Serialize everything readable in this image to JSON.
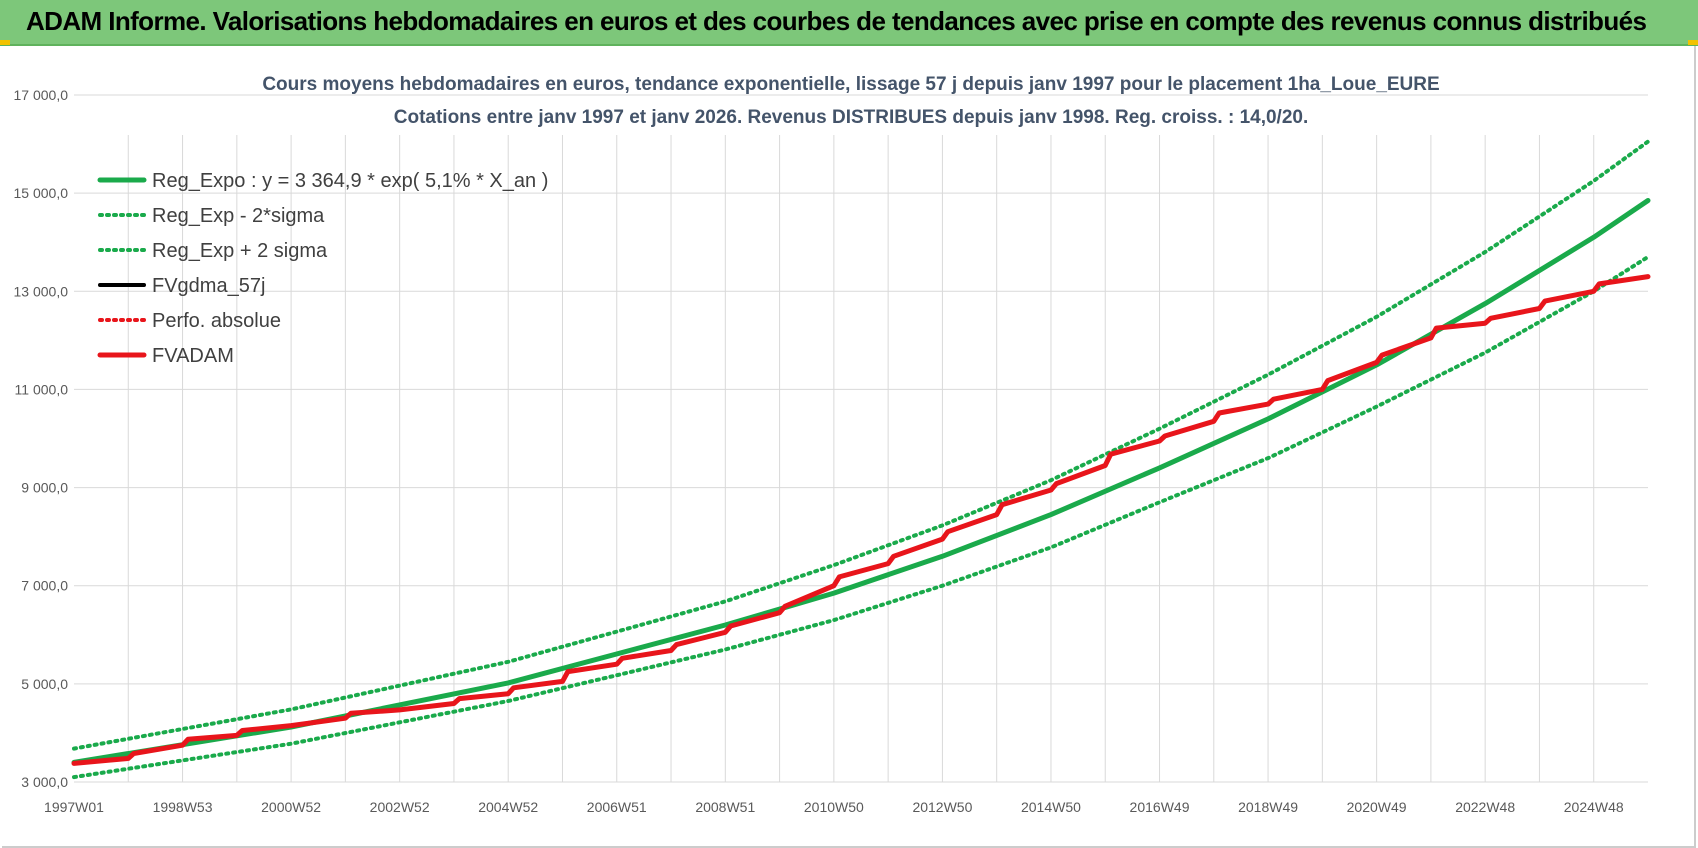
{
  "header": {
    "title": "ADAM Informe. Valorisations hebdomadaires en euros et des courbes de tendances avec prise en compte des revenus connus distribués"
  },
  "colors": {
    "header_bg": "#7dc77a",
    "reg_expo": "#1aaa4b",
    "fvadam": "#e8151b",
    "fvgdma": "#000000",
    "grid": "#d9d9d9"
  },
  "chart_data": {
    "type": "line",
    "title": "Cours moyens  hebdomadaires en euros, tendance exponentielle, lissage 57 j depuis janv 1997 pour le placement 1ha_Loue_EURE",
    "subtitle": "Cotations entre janv 1997 et janv 2026. Revenus DISTRIBUES depuis janv 1998.  Reg. croiss. : 14,0/20.",
    "xlabel": "",
    "ylabel": "",
    "ylim": [
      3000,
      17000
    ],
    "xlim": [
      1997.0,
      2026.0
    ],
    "grid": true,
    "legend_position": "top-left",
    "y_ticks": [
      {
        "value": 3000,
        "label": "3 000,0"
      },
      {
        "value": 5000,
        "label": "5 000,0"
      },
      {
        "value": 7000,
        "label": "7 000,0"
      },
      {
        "value": 9000,
        "label": "9 000,0"
      },
      {
        "value": 11000,
        "label": "11 000,0"
      },
      {
        "value": 13000,
        "label": "13 000,0"
      },
      {
        "value": 15000,
        "label": "15 000,0"
      },
      {
        "value": 17000,
        "label": "17 000,0"
      }
    ],
    "x_ticks": [
      {
        "value": 1997.0,
        "label": "1997W01"
      },
      {
        "value": 1999.0,
        "label": "1998W53"
      },
      {
        "value": 2001.0,
        "label": "2000W52"
      },
      {
        "value": 2003.0,
        "label": "2002W52"
      },
      {
        "value": 2005.0,
        "label": "2004W52"
      },
      {
        "value": 2007.0,
        "label": "2006W51"
      },
      {
        "value": 2009.0,
        "label": "2008W51"
      },
      {
        "value": 2011.0,
        "label": "2010W50"
      },
      {
        "value": 2013.0,
        "label": "2012W50"
      },
      {
        "value": 2015.0,
        "label": "2014W50"
      },
      {
        "value": 2017.0,
        "label": "2016W49"
      },
      {
        "value": 2019.0,
        "label": "2018W49"
      },
      {
        "value": 2021.0,
        "label": "2020W49"
      },
      {
        "value": 2023.0,
        "label": "2022W48"
      },
      {
        "value": 2025.0,
        "label": "2024W48"
      }
    ],
    "series": [
      {
        "name": "Reg_Expo : y = 3 364,9 * exp( 5,1% *  X_an )",
        "style": "solid",
        "color": "#1aaa4b",
        "points": [
          [
            1997.0,
            3400
          ],
          [
            2001.0,
            4120
          ],
          [
            2005.0,
            5020
          ],
          [
            2009.0,
            6200
          ],
          [
            2011.0,
            6850
          ],
          [
            2013.0,
            7600
          ],
          [
            2015.0,
            8450
          ],
          [
            2017.0,
            9400
          ],
          [
            2019.0,
            10400
          ],
          [
            2021.0,
            11500
          ],
          [
            2023.0,
            12750
          ],
          [
            2025.0,
            14100
          ],
          [
            2026.0,
            14850
          ]
        ]
      },
      {
        "name": "Reg_Exp - 2*sigma",
        "style": "dotted",
        "color": "#1aaa4b",
        "points": [
          [
            1997.0,
            3100
          ],
          [
            2001.0,
            3780
          ],
          [
            2005.0,
            4650
          ],
          [
            2009.0,
            5700
          ],
          [
            2011.0,
            6300
          ],
          [
            2013.0,
            7000
          ],
          [
            2015.0,
            7780
          ],
          [
            2017.0,
            8700
          ],
          [
            2019.0,
            9600
          ],
          [
            2021.0,
            10650
          ],
          [
            2023.0,
            11750
          ],
          [
            2025.0,
            13000
          ],
          [
            2026.0,
            13700
          ]
        ]
      },
      {
        "name": "Reg_Exp + 2 sigma",
        "style": "dotted",
        "color": "#1aaa4b",
        "points": [
          [
            1997.0,
            3680
          ],
          [
            2001.0,
            4480
          ],
          [
            2005.0,
            5450
          ],
          [
            2009.0,
            6680
          ],
          [
            2011.0,
            7420
          ],
          [
            2013.0,
            8230
          ],
          [
            2015.0,
            9150
          ],
          [
            2017.0,
            10200
          ],
          [
            2019.0,
            11300
          ],
          [
            2021.0,
            12480
          ],
          [
            2023.0,
            13800
          ],
          [
            2025.0,
            15250
          ],
          [
            2026.0,
            16050
          ]
        ]
      },
      {
        "name": "FVgdma_57j",
        "style": "solid",
        "color": "#000000",
        "points": [
          [
            1997.0,
            3380
          ],
          [
            1998.0,
            3480
          ],
          [
            1998.1,
            3580
          ],
          [
            1999.0,
            3750
          ],
          [
            1999.1,
            3870
          ],
          [
            2000.0,
            3950
          ],
          [
            2000.1,
            4050
          ],
          [
            2001.0,
            4150
          ],
          [
            2002.0,
            4300
          ],
          [
            2002.1,
            4400
          ],
          [
            2003.0,
            4470
          ],
          [
            2004.0,
            4600
          ],
          [
            2004.1,
            4700
          ],
          [
            2005.0,
            4800
          ],
          [
            2005.1,
            4920
          ],
          [
            2006.0,
            5050
          ],
          [
            2006.1,
            5250
          ],
          [
            2007.0,
            5400
          ],
          [
            2007.1,
            5520
          ],
          [
            2008.0,
            5680
          ],
          [
            2008.1,
            5800
          ],
          [
            2009.0,
            6050
          ],
          [
            2009.1,
            6180
          ],
          [
            2010.0,
            6450
          ],
          [
            2010.1,
            6580
          ],
          [
            2011.0,
            7000
          ],
          [
            2011.1,
            7180
          ],
          [
            2012.0,
            7450
          ],
          [
            2012.1,
            7600
          ],
          [
            2013.0,
            7950
          ],
          [
            2013.1,
            8100
          ],
          [
            2014.0,
            8450
          ],
          [
            2014.1,
            8650
          ],
          [
            2015.0,
            8950
          ],
          [
            2015.1,
            9080
          ],
          [
            2016.0,
            9450
          ],
          [
            2016.1,
            9680
          ],
          [
            2017.0,
            9950
          ],
          [
            2017.1,
            10050
          ],
          [
            2018.0,
            10350
          ],
          [
            2018.1,
            10520
          ],
          [
            2019.0,
            10700
          ],
          [
            2019.1,
            10800
          ],
          [
            2020.0,
            11000
          ],
          [
            2020.1,
            11180
          ],
          [
            2021.0,
            11550
          ],
          [
            2021.1,
            11700
          ],
          [
            2022.0,
            12050
          ],
          [
            2022.1,
            12250
          ],
          [
            2023.0,
            12350
          ],
          [
            2023.1,
            12450
          ],
          [
            2024.0,
            12650
          ],
          [
            2024.1,
            12800
          ],
          [
            2025.0,
            13000
          ],
          [
            2025.1,
            13150
          ],
          [
            2026.0,
            13300
          ]
        ]
      },
      {
        "name": "Perfo. absolue",
        "style": "dotted",
        "color": "#e8151b",
        "points": [
          [
            1997.0,
            3380
          ],
          [
            1998.0,
            3480
          ],
          [
            1998.1,
            3580
          ],
          [
            1999.0,
            3750
          ],
          [
            1999.1,
            3870
          ],
          [
            2000.0,
            3950
          ],
          [
            2000.1,
            4050
          ],
          [
            2001.0,
            4150
          ],
          [
            2002.0,
            4300
          ],
          [
            2002.1,
            4400
          ],
          [
            2003.0,
            4470
          ],
          [
            2004.0,
            4600
          ],
          [
            2004.1,
            4700
          ],
          [
            2005.0,
            4800
          ],
          [
            2005.1,
            4920
          ],
          [
            2006.0,
            5050
          ],
          [
            2006.1,
            5250
          ],
          [
            2007.0,
            5400
          ],
          [
            2007.1,
            5520
          ],
          [
            2008.0,
            5680
          ],
          [
            2008.1,
            5800
          ],
          [
            2009.0,
            6050
          ],
          [
            2009.1,
            6180
          ],
          [
            2010.0,
            6450
          ],
          [
            2010.1,
            6580
          ],
          [
            2011.0,
            7000
          ],
          [
            2011.1,
            7180
          ],
          [
            2012.0,
            7450
          ],
          [
            2012.1,
            7600
          ],
          [
            2013.0,
            7950
          ],
          [
            2013.1,
            8100
          ],
          [
            2014.0,
            8450
          ],
          [
            2014.1,
            8650
          ],
          [
            2015.0,
            8950
          ],
          [
            2015.1,
            9080
          ],
          [
            2016.0,
            9450
          ],
          [
            2016.1,
            9680
          ],
          [
            2017.0,
            9950
          ],
          [
            2017.1,
            10050
          ],
          [
            2018.0,
            10350
          ],
          [
            2018.1,
            10520
          ],
          [
            2019.0,
            10700
          ],
          [
            2019.1,
            10800
          ],
          [
            2020.0,
            11000
          ],
          [
            2020.1,
            11180
          ],
          [
            2021.0,
            11550
          ],
          [
            2021.1,
            11700
          ],
          [
            2022.0,
            12050
          ],
          [
            2022.1,
            12250
          ],
          [
            2023.0,
            12350
          ],
          [
            2023.1,
            12450
          ],
          [
            2024.0,
            12650
          ],
          [
            2024.1,
            12800
          ],
          [
            2025.0,
            13000
          ],
          [
            2025.1,
            13150
          ],
          [
            2026.0,
            13300
          ]
        ]
      },
      {
        "name": "FVADAM",
        "style": "solid",
        "color": "#e8151b",
        "points": [
          [
            1997.0,
            3380
          ],
          [
            1998.0,
            3480
          ],
          [
            1998.1,
            3580
          ],
          [
            1999.0,
            3750
          ],
          [
            1999.1,
            3870
          ],
          [
            2000.0,
            3950
          ],
          [
            2000.1,
            4050
          ],
          [
            2001.0,
            4150
          ],
          [
            2002.0,
            4300
          ],
          [
            2002.1,
            4400
          ],
          [
            2003.0,
            4470
          ],
          [
            2004.0,
            4600
          ],
          [
            2004.1,
            4700
          ],
          [
            2005.0,
            4800
          ],
          [
            2005.1,
            4920
          ],
          [
            2006.0,
            5050
          ],
          [
            2006.1,
            5250
          ],
          [
            2007.0,
            5400
          ],
          [
            2007.1,
            5520
          ],
          [
            2008.0,
            5680
          ],
          [
            2008.1,
            5800
          ],
          [
            2009.0,
            6050
          ],
          [
            2009.1,
            6180
          ],
          [
            2010.0,
            6450
          ],
          [
            2010.1,
            6580
          ],
          [
            2011.0,
            7000
          ],
          [
            2011.1,
            7180
          ],
          [
            2012.0,
            7450
          ],
          [
            2012.1,
            7600
          ],
          [
            2013.0,
            7950
          ],
          [
            2013.1,
            8100
          ],
          [
            2014.0,
            8450
          ],
          [
            2014.1,
            8650
          ],
          [
            2015.0,
            8950
          ],
          [
            2015.1,
            9080
          ],
          [
            2016.0,
            9450
          ],
          [
            2016.1,
            9680
          ],
          [
            2017.0,
            9950
          ],
          [
            2017.1,
            10050
          ],
          [
            2018.0,
            10350
          ],
          [
            2018.1,
            10520
          ],
          [
            2019.0,
            10700
          ],
          [
            2019.1,
            10800
          ],
          [
            2020.0,
            11000
          ],
          [
            2020.1,
            11180
          ],
          [
            2021.0,
            11550
          ],
          [
            2021.1,
            11700
          ],
          [
            2022.0,
            12050
          ],
          [
            2022.1,
            12250
          ],
          [
            2023.0,
            12350
          ],
          [
            2023.1,
            12450
          ],
          [
            2024.0,
            12650
          ],
          [
            2024.1,
            12800
          ],
          [
            2025.0,
            13000
          ],
          [
            2025.1,
            13150
          ],
          [
            2026.0,
            13300
          ]
        ]
      }
    ]
  }
}
